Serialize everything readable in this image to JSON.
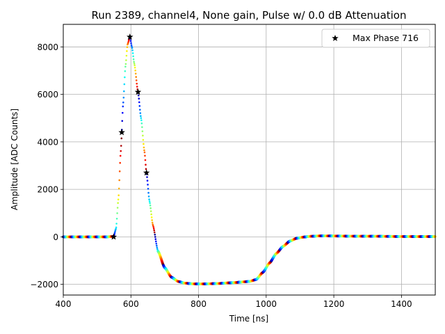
{
  "chart_data": {
    "type": "scatter",
    "title": "Run 2389, channel4, None gain, Pulse w/ 0.0 dB Attenuation",
    "xlabel": "Time [ns]",
    "ylabel": "Amplitude [ADC Counts]",
    "xlim": [
      400,
      1500
    ],
    "ylim": [
      -2450,
      8950
    ],
    "xticks": [
      400,
      600,
      800,
      1000,
      1200,
      1400
    ],
    "yticks": [
      -2000,
      0,
      2000,
      4000,
      6000,
      8000
    ],
    "xtick_labels": [
      "400",
      "600",
      "800",
      "1000",
      "1200",
      "1400"
    ],
    "ytick_labels": [
      "−2000",
      "0",
      "2000",
      "4000",
      "6000",
      "8000"
    ],
    "grid": true,
    "legend_position": "upper-right",
    "colormap": "jet",
    "series": [
      {
        "name": "Max Phase 716",
        "marker": "star",
        "color": "#000000",
        "x": [
          549,
          573,
          597,
          621,
          646
        ],
        "y": [
          0,
          4400,
          8420,
          6100,
          2700
        ]
      }
    ],
    "waveform_points": [
      [
        400,
        0
      ],
      [
        530,
        0
      ],
      [
        549,
        20
      ],
      [
        556,
        350
      ],
      [
        563,
        1600
      ],
      [
        570,
        3600
      ],
      [
        577,
        5600
      ],
      [
        584,
        7200
      ],
      [
        590,
        8100
      ],
      [
        597,
        8420
      ],
      [
        603,
        8000
      ],
      [
        610,
        7300
      ],
      [
        621,
        6100
      ],
      [
        630,
        5000
      ],
      [
        640,
        3600
      ],
      [
        646,
        2700
      ],
      [
        655,
        1500
      ],
      [
        665,
        500
      ],
      [
        680,
        -600
      ],
      [
        700,
        -1300
      ],
      [
        720,
        -1700
      ],
      [
        740,
        -1880
      ],
      [
        760,
        -1950
      ],
      [
        780,
        -1975
      ],
      [
        800,
        -1985
      ],
      [
        850,
        -1970
      ],
      [
        900,
        -1930
      ],
      [
        950,
        -1880
      ],
      [
        970,
        -1800
      ],
      [
        990,
        -1500
      ],
      [
        1010,
        -1100
      ],
      [
        1030,
        -700
      ],
      [
        1050,
        -400
      ],
      [
        1070,
        -180
      ],
      [
        1090,
        -60
      ],
      [
        1110,
        -10
      ],
      [
        1130,
        20
      ],
      [
        1160,
        40
      ],
      [
        1200,
        35
      ],
      [
        1250,
        30
      ],
      [
        1300,
        25
      ],
      [
        1400,
        15
      ],
      [
        1500,
        10
      ]
    ]
  }
}
